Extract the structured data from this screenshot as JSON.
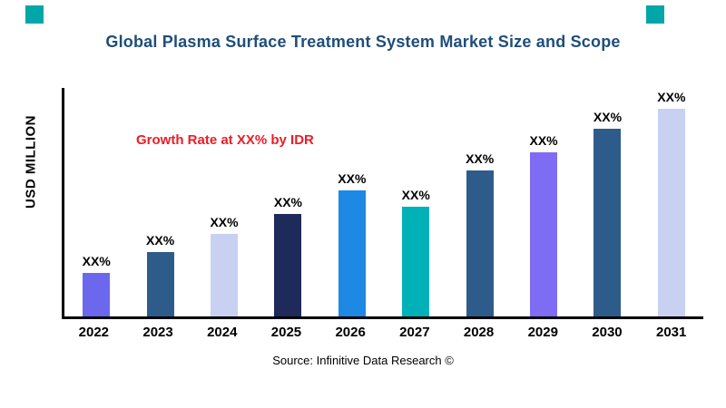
{
  "page": {
    "title": "Global Plasma Surface Treatment System Market Size and Scope",
    "y_axis_label": "USD MILLION",
    "annotation": "Growth Rate at XX% by IDR",
    "source": "Source: Infinitive Data Research ©"
  },
  "colors": {
    "title_text": "#1f4e79",
    "annotation_text": "#ed1c24",
    "accent_square": "#00a6a9",
    "axis": "#000000"
  },
  "chart_data": {
    "type": "bar",
    "title": "Global Plasma Surface Treatment System Market Size and Scope",
    "xlabel": "",
    "ylabel": "USD MILLION",
    "categories": [
      "2022",
      "2023",
      "2024",
      "2025",
      "2026",
      "2027",
      "2028",
      "2029",
      "2030",
      "2031"
    ],
    "values": [
      19,
      28,
      36,
      45,
      55,
      48,
      64,
      72,
      82,
      91
    ],
    "bar_labels": [
      "XX%",
      "XX%",
      "XX%",
      "XX%",
      "XX%",
      "XX%",
      "XX%",
      "XX%",
      "XX%",
      "XX%"
    ],
    "bar_colors": [
      "#6b68ee",
      "#2e5c8a",
      "#c9d1f2",
      "#1e2a5a",
      "#1e88e5",
      "#00b2b8",
      "#2e5c8a",
      "#7e6cf5",
      "#2e5c8a",
      "#c9d1f2"
    ],
    "ylim": [
      0,
      100
    ],
    "grid": false,
    "legend": false,
    "annotations": [
      "Growth Rate at XX% by IDR"
    ],
    "source": "Source: Infinitive Data Research ©"
  }
}
